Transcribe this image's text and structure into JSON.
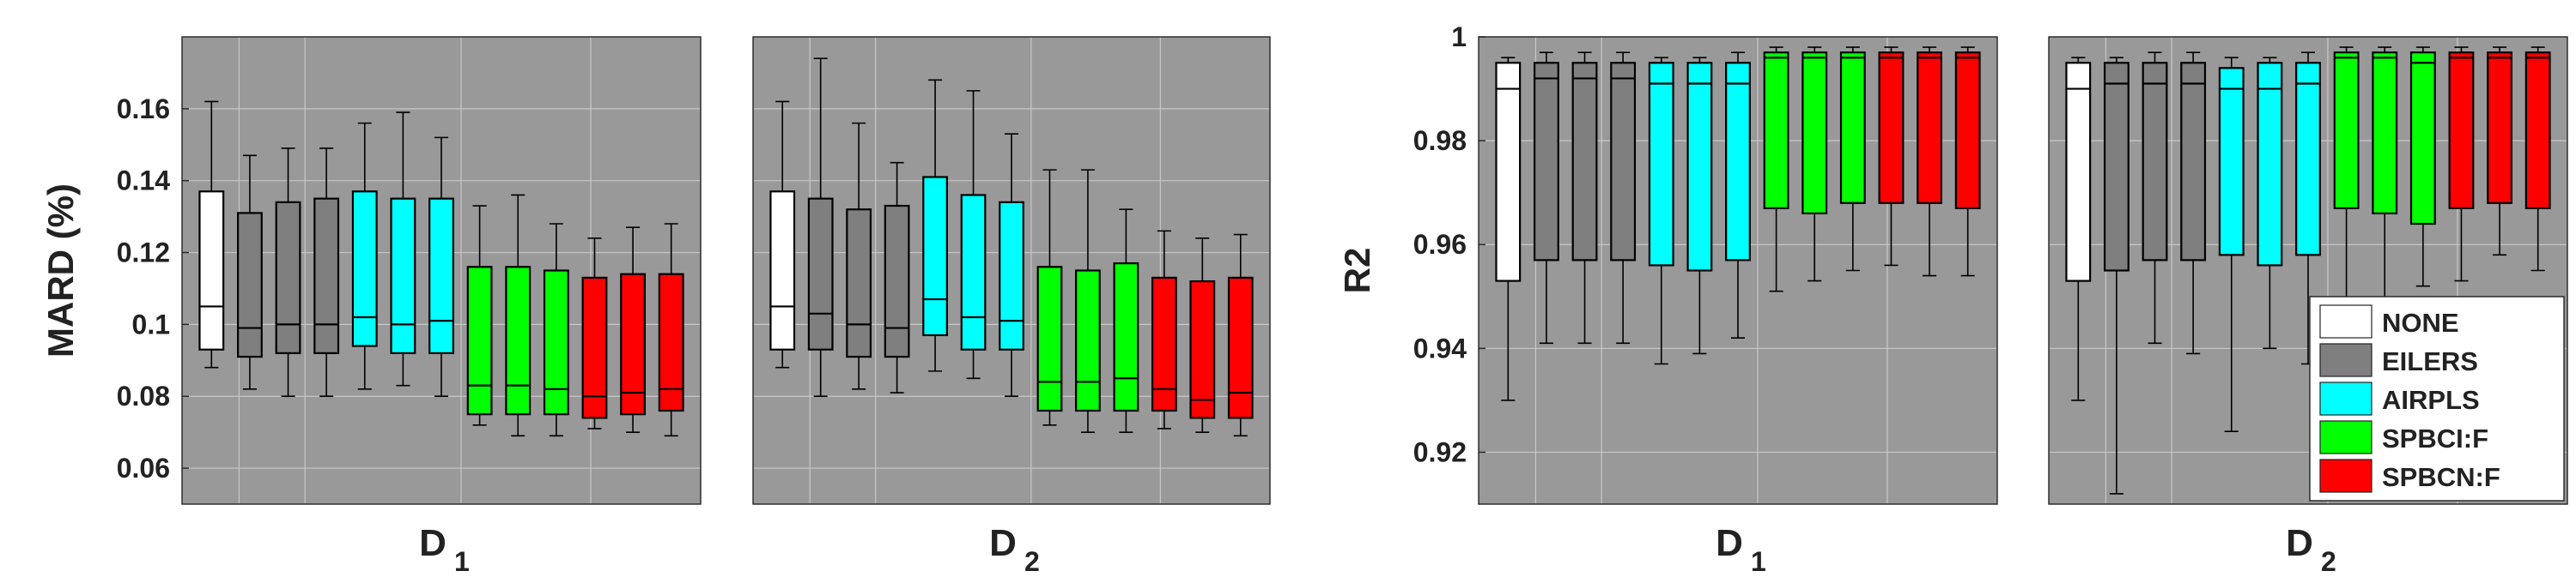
{
  "colors": {
    "NONE": "#ffffff",
    "EILERS": "#7f7f7f",
    "AIRPLS": "#00ffff",
    "SPBCI:F": "#00ff00",
    "SPBCN:F": "#ff0000",
    "plot_background": "#999999",
    "grid": "#c8c8c8"
  },
  "chart_data": [
    {
      "type": "boxplot",
      "ylabel": "MARD (%)",
      "ylim": [
        0.05,
        0.18
      ],
      "yticks": [
        "0.06",
        "0.08",
        "0.1",
        "0.12",
        "0.14",
        "0.16"
      ],
      "grid": true,
      "panels": [
        {
          "label": "D",
          "subscript": "1",
          "boxes": [
            {
              "method": "NONE",
              "whisker_low": 0.088,
              "q1": 0.093,
              "median": 0.105,
              "q3": 0.137,
              "whisker_high": 0.162
            },
            {
              "method": "EILERS",
              "whisker_low": 0.082,
              "q1": 0.091,
              "median": 0.099,
              "q3": 0.131,
              "whisker_high": 0.147
            },
            {
              "method": "EILERS",
              "whisker_low": 0.08,
              "q1": 0.092,
              "median": 0.1,
              "q3": 0.134,
              "whisker_high": 0.149
            },
            {
              "method": "EILERS",
              "whisker_low": 0.08,
              "q1": 0.092,
              "median": 0.1,
              "q3": 0.135,
              "whisker_high": 0.149
            },
            {
              "method": "AIRPLS",
              "whisker_low": 0.082,
              "q1": 0.094,
              "median": 0.102,
              "q3": 0.137,
              "whisker_high": 0.156
            },
            {
              "method": "AIRPLS",
              "whisker_low": 0.083,
              "q1": 0.092,
              "median": 0.1,
              "q3": 0.135,
              "whisker_high": 0.159
            },
            {
              "method": "AIRPLS",
              "whisker_low": 0.08,
              "q1": 0.092,
              "median": 0.101,
              "q3": 0.135,
              "whisker_high": 0.152
            },
            {
              "method": "SPBCI:F",
              "whisker_low": 0.072,
              "q1": 0.075,
              "median": 0.083,
              "q3": 0.116,
              "whisker_high": 0.133
            },
            {
              "method": "SPBCI:F",
              "whisker_low": 0.069,
              "q1": 0.075,
              "median": 0.083,
              "q3": 0.116,
              "whisker_high": 0.136
            },
            {
              "method": "SPBCI:F",
              "whisker_low": 0.069,
              "q1": 0.075,
              "median": 0.082,
              "q3": 0.115,
              "whisker_high": 0.128
            },
            {
              "method": "SPBCN:F",
              "whisker_low": 0.071,
              "q1": 0.074,
              "median": 0.08,
              "q3": 0.113,
              "whisker_high": 0.124
            },
            {
              "method": "SPBCN:F",
              "whisker_low": 0.07,
              "q1": 0.075,
              "median": 0.081,
              "q3": 0.114,
              "whisker_high": 0.127
            },
            {
              "method": "SPBCN:F",
              "whisker_low": 0.069,
              "q1": 0.076,
              "median": 0.082,
              "q3": 0.114,
              "whisker_high": 0.128
            }
          ]
        },
        {
          "label": "D",
          "subscript": "2",
          "boxes": [
            {
              "method": "NONE",
              "whisker_low": 0.088,
              "q1": 0.093,
              "median": 0.105,
              "q3": 0.137,
              "whisker_high": 0.162
            },
            {
              "method": "EILERS",
              "whisker_low": 0.08,
              "q1": 0.093,
              "median": 0.103,
              "q3": 0.135,
              "whisker_high": 0.174
            },
            {
              "method": "EILERS",
              "whisker_low": 0.082,
              "q1": 0.091,
              "median": 0.1,
              "q3": 0.132,
              "whisker_high": 0.156
            },
            {
              "method": "EILERS",
              "whisker_low": 0.081,
              "q1": 0.091,
              "median": 0.099,
              "q3": 0.133,
              "whisker_high": 0.145
            },
            {
              "method": "AIRPLS",
              "whisker_low": 0.087,
              "q1": 0.097,
              "median": 0.107,
              "q3": 0.141,
              "whisker_high": 0.168
            },
            {
              "method": "AIRPLS",
              "whisker_low": 0.085,
              "q1": 0.093,
              "median": 0.102,
              "q3": 0.136,
              "whisker_high": 0.165
            },
            {
              "method": "AIRPLS",
              "whisker_low": 0.08,
              "q1": 0.093,
              "median": 0.101,
              "q3": 0.134,
              "whisker_high": 0.153
            },
            {
              "method": "SPBCI:F",
              "whisker_low": 0.072,
              "q1": 0.076,
              "median": 0.084,
              "q3": 0.116,
              "whisker_high": 0.143
            },
            {
              "method": "SPBCI:F",
              "whisker_low": 0.07,
              "q1": 0.076,
              "median": 0.084,
              "q3": 0.115,
              "whisker_high": 0.143
            },
            {
              "method": "SPBCI:F",
              "whisker_low": 0.07,
              "q1": 0.076,
              "median": 0.085,
              "q3": 0.117,
              "whisker_high": 0.132
            },
            {
              "method": "SPBCN:F",
              "whisker_low": 0.071,
              "q1": 0.076,
              "median": 0.082,
              "q3": 0.113,
              "whisker_high": 0.126
            },
            {
              "method": "SPBCN:F",
              "whisker_low": 0.07,
              "q1": 0.074,
              "median": 0.079,
              "q3": 0.112,
              "whisker_high": 0.124
            },
            {
              "method": "SPBCN:F",
              "whisker_low": 0.069,
              "q1": 0.074,
              "median": 0.081,
              "q3": 0.113,
              "whisker_high": 0.125
            }
          ]
        }
      ]
    },
    {
      "type": "boxplot",
      "ylabel": "R2",
      "ylim": [
        0.91,
        1.0
      ],
      "yticks": [
        "0.92",
        "0.94",
        "0.96",
        "0.98",
        "1"
      ],
      "grid": true,
      "legend": {
        "placement": "bottom-right",
        "entries": [
          "NONE",
          "EILERS",
          "AIRPLS",
          "SPBCI:F",
          "SPBCN:F"
        ]
      },
      "panels": [
        {
          "label": "D",
          "subscript": "1",
          "boxes": [
            {
              "method": "NONE",
              "whisker_low": 0.93,
              "q1": 0.953,
              "median": 0.99,
              "q3": 0.995,
              "whisker_high": 0.996
            },
            {
              "method": "EILERS",
              "whisker_low": 0.941,
              "q1": 0.957,
              "median": 0.992,
              "q3": 0.995,
              "whisker_high": 0.997
            },
            {
              "method": "EILERS",
              "whisker_low": 0.941,
              "q1": 0.957,
              "median": 0.992,
              "q3": 0.995,
              "whisker_high": 0.997
            },
            {
              "method": "EILERS",
              "whisker_low": 0.941,
              "q1": 0.957,
              "median": 0.992,
              "q3": 0.995,
              "whisker_high": 0.997
            },
            {
              "method": "AIRPLS",
              "whisker_low": 0.937,
              "q1": 0.956,
              "median": 0.991,
              "q3": 0.995,
              "whisker_high": 0.996
            },
            {
              "method": "AIRPLS",
              "whisker_low": 0.939,
              "q1": 0.955,
              "median": 0.991,
              "q3": 0.995,
              "whisker_high": 0.996
            },
            {
              "method": "AIRPLS",
              "whisker_low": 0.942,
              "q1": 0.957,
              "median": 0.991,
              "q3": 0.995,
              "whisker_high": 0.997
            },
            {
              "method": "SPBCI:F",
              "whisker_low": 0.951,
              "q1": 0.967,
              "median": 0.996,
              "q3": 0.997,
              "whisker_high": 0.998
            },
            {
              "method": "SPBCI:F",
              "whisker_low": 0.953,
              "q1": 0.966,
              "median": 0.996,
              "q3": 0.997,
              "whisker_high": 0.998
            },
            {
              "method": "SPBCI:F",
              "whisker_low": 0.955,
              "q1": 0.968,
              "median": 0.996,
              "q3": 0.997,
              "whisker_high": 0.998
            },
            {
              "method": "SPBCN:F",
              "whisker_low": 0.956,
              "q1": 0.968,
              "median": 0.996,
              "q3": 0.997,
              "whisker_high": 0.998
            },
            {
              "method": "SPBCN:F",
              "whisker_low": 0.954,
              "q1": 0.968,
              "median": 0.996,
              "q3": 0.997,
              "whisker_high": 0.998
            },
            {
              "method": "SPBCN:F",
              "whisker_low": 0.954,
              "q1": 0.967,
              "median": 0.996,
              "q3": 0.997,
              "whisker_high": 0.998
            }
          ]
        },
        {
          "label": "D",
          "subscript": "2",
          "boxes": [
            {
              "method": "NONE",
              "whisker_low": 0.93,
              "q1": 0.953,
              "median": 0.99,
              "q3": 0.995,
              "whisker_high": 0.996
            },
            {
              "method": "EILERS",
              "whisker_low": 0.912,
              "q1": 0.955,
              "median": 0.991,
              "q3": 0.995,
              "whisker_high": 0.996
            },
            {
              "method": "EILERS",
              "whisker_low": 0.941,
              "q1": 0.957,
              "median": 0.991,
              "q3": 0.995,
              "whisker_high": 0.997
            },
            {
              "method": "EILERS",
              "whisker_low": 0.939,
              "q1": 0.957,
              "median": 0.991,
              "q3": 0.995,
              "whisker_high": 0.997
            },
            {
              "method": "AIRPLS",
              "whisker_low": 0.924,
              "q1": 0.958,
              "median": 0.99,
              "q3": 0.994,
              "whisker_high": 0.996
            },
            {
              "method": "AIRPLS",
              "whisker_low": 0.94,
              "q1": 0.956,
              "median": 0.99,
              "q3": 0.995,
              "whisker_high": 0.996
            },
            {
              "method": "AIRPLS",
              "whisker_low": 0.937,
              "q1": 0.958,
              "median": 0.991,
              "q3": 0.995,
              "whisker_high": 0.997
            },
            {
              "method": "SPBCI:F",
              "whisker_low": 0.934,
              "q1": 0.967,
              "median": 0.996,
              "q3": 0.997,
              "whisker_high": 0.998
            },
            {
              "method": "SPBCI:F",
              "whisker_low": 0.947,
              "q1": 0.966,
              "median": 0.996,
              "q3": 0.997,
              "whisker_high": 0.998
            },
            {
              "method": "SPBCI:F",
              "whisker_low": 0.952,
              "q1": 0.964,
              "median": 0.995,
              "q3": 0.997,
              "whisker_high": 0.998
            },
            {
              "method": "SPBCN:F",
              "whisker_low": 0.953,
              "q1": 0.967,
              "median": 0.996,
              "q3": 0.997,
              "whisker_high": 0.998
            },
            {
              "method": "SPBCN:F",
              "whisker_low": 0.958,
              "q1": 0.968,
              "median": 0.996,
              "q3": 0.997,
              "whisker_high": 0.998
            },
            {
              "method": "SPBCN:F",
              "whisker_low": 0.955,
              "q1": 0.967,
              "median": 0.996,
              "q3": 0.997,
              "whisker_high": 0.998
            }
          ]
        }
      ]
    }
  ]
}
